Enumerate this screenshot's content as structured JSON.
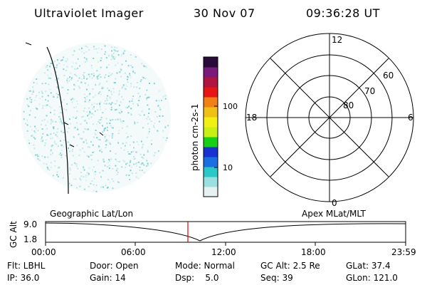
{
  "header": {
    "instrument": "Ultraviolet Imager",
    "date": "30 Nov 07",
    "time": "09:36:28 UT"
  },
  "colorbar": {
    "label": "photon cm-2s-1",
    "ticks": [
      "100",
      "10"
    ],
    "colors": [
      "#e6f2f2",
      "#9ae0e0",
      "#2bc8c8",
      "#1a70e0",
      "#1a30d0",
      "#15d015",
      "#c8f015",
      "#f0f015",
      "#f0c015",
      "#f08015",
      "#e81515",
      "#b01540",
      "#7a1a7a",
      "#2a0a3a"
    ]
  },
  "polar_grid": {
    "mlt_labels": {
      "top": "12",
      "left": "18",
      "right": "6",
      "bottom": "0"
    },
    "lat_labels": [
      "60",
      "70",
      "80"
    ]
  },
  "orbit_plot": {
    "ylabel": "GC Alt",
    "yticks": [
      "9.0",
      "1.8"
    ],
    "left_title": "Geographic Lat/Lon",
    "right_title": "Apex MLat/MLT",
    "xticks": [
      "00:00",
      "06:00",
      "12:00",
      "18:00",
      "23:59"
    ],
    "marker_color": "#e00000"
  },
  "status": {
    "flt": "Flt: LBHL",
    "door": "Door: Open",
    "mode": "Mode: Normal",
    "gc_alt": "GC Alt: 2.5 Re",
    "glat": "GLat:  37.4",
    "ip": "IP: 36.0",
    "gain": "Gain: 14",
    "dsp": "Dsp:    5.0",
    "seq": "Seq: 39",
    "glon": "GLon: 121.0"
  }
}
